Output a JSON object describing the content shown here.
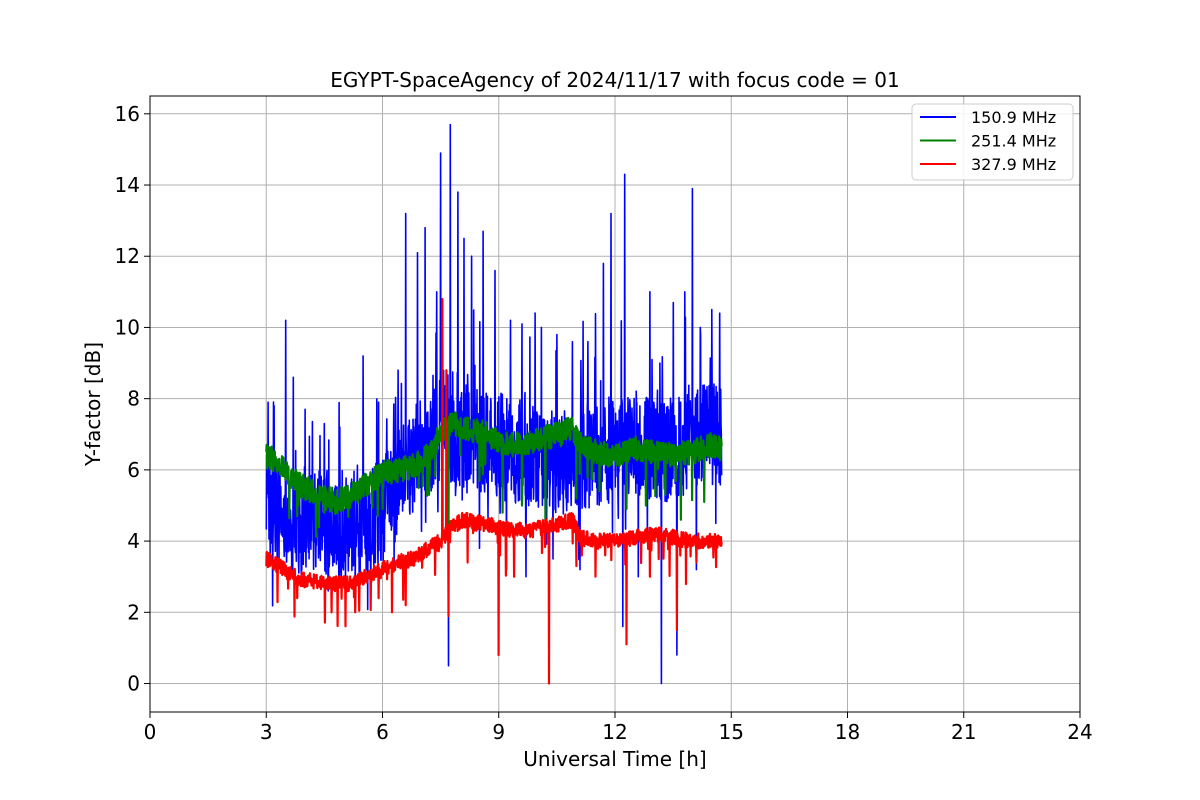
{
  "chart_data": {
    "type": "line",
    "title": "EGYPT-SpaceAgency of 2024/11/17 with focus code = 01",
    "xlabel": "Universal Time [h]",
    "ylabel": "Y-factor [dB]",
    "xlim": [
      0,
      24
    ],
    "ylim": [
      -0.8,
      16.5
    ],
    "xticks": [
      0,
      3,
      6,
      9,
      12,
      15,
      18,
      21,
      24
    ],
    "yticks": [
      0,
      2,
      4,
      6,
      8,
      10,
      12,
      14,
      16
    ],
    "grid": true,
    "legend_position": "top-right",
    "series": [
      {
        "name": "150.9 MHz",
        "color": "#0000ff",
        "x": [
          3.0,
          3.2,
          3.5,
          3.8,
          4.2,
          4.6,
          5.0,
          5.4,
          5.8,
          6.2,
          6.6,
          7.0,
          7.4,
          7.7,
          8.0,
          8.4,
          8.8,
          9.2,
          9.6,
          10.0,
          10.4,
          10.8,
          11.2,
          11.6,
          12.0,
          12.4,
          12.8,
          13.2,
          13.6,
          14.0,
          14.4,
          14.75
        ],
        "values": [
          5.0,
          4.8,
          4.6,
          4.5,
          4.7,
          4.4,
          4.3,
          4.2,
          4.6,
          5.2,
          6.0,
          6.6,
          7.0,
          7.2,
          6.9,
          6.8,
          6.7,
          6.6,
          6.5,
          6.4,
          6.3,
          6.2,
          6.3,
          6.5,
          6.6,
          6.8,
          6.7,
          6.5,
          6.6,
          7.0,
          7.1,
          7.0
        ],
        "peaks": [
          [
            3.05,
            7.9
          ],
          [
            3.2,
            7.8
          ],
          [
            3.5,
            10.2
          ],
          [
            3.7,
            8.6
          ],
          [
            4.0,
            7.7
          ],
          [
            4.5,
            7.3
          ],
          [
            4.9,
            7.2
          ],
          [
            5.5,
            9.2
          ],
          [
            5.9,
            7.9
          ],
          [
            6.4,
            8.8
          ],
          [
            6.6,
            13.2
          ],
          [
            6.9,
            12.1
          ],
          [
            7.1,
            12.8
          ],
          [
            7.4,
            11.0
          ],
          [
            7.5,
            14.9
          ],
          [
            7.75,
            15.7
          ],
          [
            7.95,
            13.8
          ],
          [
            8.1,
            12.5
          ],
          [
            8.3,
            12.0
          ],
          [
            8.6,
            12.7
          ],
          [
            8.9,
            11.6
          ],
          [
            9.3,
            10.2
          ],
          [
            9.6,
            10.1
          ],
          [
            10.1,
            10.0
          ],
          [
            10.5,
            9.8
          ],
          [
            10.9,
            9.6
          ],
          [
            11.3,
            9.6
          ],
          [
            11.7,
            11.8
          ],
          [
            11.9,
            13.2
          ],
          [
            12.25,
            14.3
          ],
          [
            12.6,
            11.7
          ],
          [
            12.9,
            11.0
          ],
          [
            13.2,
            12.8
          ],
          [
            13.5,
            10.7
          ],
          [
            13.8,
            11.0
          ],
          [
            14.0,
            13.9
          ],
          [
            14.2,
            10.0
          ],
          [
            14.5,
            10.5
          ],
          [
            14.7,
            10.4
          ]
        ],
        "dips": [
          [
            3.9,
            3.0
          ],
          [
            4.6,
            2.6
          ],
          [
            5.3,
            2.6
          ],
          [
            5.7,
            2.2
          ],
          [
            6.3,
            3.2
          ],
          [
            7.7,
            0.5
          ],
          [
            8.5,
            3.8
          ],
          [
            9.2,
            3.2
          ],
          [
            9.7,
            3.0
          ],
          [
            10.4,
            3.5
          ],
          [
            11.1,
            3.2
          ],
          [
            12.2,
            1.6
          ],
          [
            12.6,
            3.0
          ],
          [
            13.2,
            0.0
          ],
          [
            13.6,
            0.8
          ],
          [
            14.1,
            3.2
          ],
          [
            14.6,
            4.5
          ]
        ]
      },
      {
        "name": "251.4 MHz",
        "color": "#008000",
        "x": [
          3.0,
          3.3,
          3.6,
          4.0,
          4.4,
          4.8,
          5.2,
          5.6,
          6.0,
          6.4,
          6.8,
          7.2,
          7.5,
          7.8,
          8.1,
          8.4,
          8.7,
          9.0,
          9.4,
          9.8,
          10.2,
          10.6,
          10.9,
          11.1,
          11.5,
          12.0,
          12.5,
          13.0,
          13.5,
          14.0,
          14.5,
          14.75
        ],
        "values": [
          6.4,
          6.2,
          5.8,
          5.5,
          5.3,
          5.1,
          5.3,
          5.6,
          5.9,
          6.0,
          6.1,
          6.5,
          7.0,
          7.3,
          7.2,
          7.1,
          7.0,
          6.8,
          6.7,
          6.8,
          6.9,
          7.0,
          7.2,
          6.7,
          6.5,
          6.4,
          6.6,
          6.5,
          6.4,
          6.5,
          6.7,
          6.6
        ],
        "dips": [
          [
            3.8,
            4.7
          ],
          [
            4.5,
            4.8
          ],
          [
            6.0,
            4.9
          ],
          [
            7.2,
            5.3
          ],
          [
            7.7,
            4.2
          ],
          [
            8.5,
            5.7
          ],
          [
            9.1,
            4.8
          ],
          [
            9.6,
            5.0
          ],
          [
            10.2,
            4.6
          ],
          [
            11.0,
            5.2
          ],
          [
            11.6,
            5.4
          ],
          [
            12.3,
            4.9
          ],
          [
            12.8,
            5.0
          ],
          [
            13.3,
            5.3
          ],
          [
            13.7,
            4.6
          ],
          [
            14.3,
            5.1
          ]
        ]
      },
      {
        "name": "327.9 MHz",
        "color": "#ff0000",
        "x": [
          3.0,
          3.3,
          3.6,
          4.0,
          4.4,
          4.8,
          5.2,
          5.6,
          6.0,
          6.4,
          6.8,
          7.2,
          7.5,
          7.8,
          8.1,
          8.4,
          8.7,
          9.0,
          9.4,
          9.8,
          10.2,
          10.6,
          10.9,
          11.1,
          11.5,
          12.0,
          12.5,
          13.0,
          13.5,
          14.0,
          14.5,
          14.75
        ],
        "values": [
          3.5,
          3.3,
          3.1,
          2.9,
          2.85,
          2.8,
          2.8,
          3.0,
          3.2,
          3.4,
          3.5,
          3.8,
          4.0,
          4.4,
          4.6,
          4.5,
          4.5,
          4.4,
          4.3,
          4.3,
          4.4,
          4.5,
          4.6,
          4.1,
          4.0,
          4.0,
          4.1,
          4.2,
          4.1,
          4.0,
          4.0,
          4.0
        ],
        "peaks": [
          [
            7.55,
            10.8
          ],
          [
            7.65,
            8.8
          ]
        ],
        "dips": [
          [
            3.8,
            2.4
          ],
          [
            5.3,
            2.0
          ],
          [
            5.9,
            2.4
          ],
          [
            6.6,
            2.2
          ],
          [
            7.7,
            1.9
          ],
          [
            8.2,
            3.4
          ],
          [
            9.0,
            0.8
          ],
          [
            9.4,
            3.0
          ],
          [
            10.3,
            0.0
          ],
          [
            11.0,
            3.3
          ],
          [
            11.5,
            3.0
          ],
          [
            12.3,
            1.1
          ],
          [
            12.9,
            3.0
          ],
          [
            13.6,
            1.5
          ],
          [
            14.1,
            3.4
          ]
        ]
      }
    ]
  }
}
